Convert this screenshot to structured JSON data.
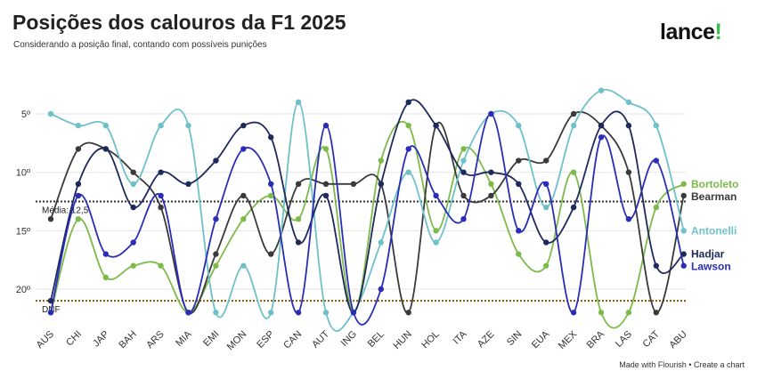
{
  "header": {
    "title": "Posições dos calouros da F1 2025",
    "subtitle": "Considerando a posição final, contando com possíveis punições",
    "logo_text": "lance",
    "logo_mark": "!"
  },
  "footer": {
    "made_with": "Made with Flourish",
    "separator": " • ",
    "create": "Create a chart"
  },
  "chart_data": {
    "type": "line",
    "categories": [
      "AUS",
      "CHI",
      "JAP",
      "BAH",
      "ARS",
      "MIA",
      "EMI",
      "MON",
      "ESP",
      "CAN",
      "AUT",
      "ING",
      "BEL",
      "HUN",
      "HOL",
      "ITA",
      "AZE",
      "SIN",
      "EUA",
      "MEX",
      "BRA",
      "LAS",
      "CAT",
      "ABU"
    ],
    "y_ticks": [
      {
        "value": 5,
        "label": "5º"
      },
      {
        "value": 10,
        "label": "10º"
      },
      {
        "value": 15,
        "label": "15º"
      },
      {
        "value": 20,
        "label": "20º"
      }
    ],
    "ylim": [
      22.5,
      2
    ],
    "y_inverted": true,
    "grid": true,
    "dnf_value": 21,
    "reference_lines": [
      {
        "label": "Média: 12,5",
        "value": 12.5
      },
      {
        "label": "DNF",
        "value": 21
      }
    ],
    "series": [
      {
        "name": "Bortoleto",
        "color": "#7dba4a",
        "values": [
          22,
          14,
          19,
          18,
          18,
          22,
          18,
          14,
          12,
          14,
          8,
          22,
          9,
          6,
          15,
          8,
          11,
          17,
          18,
          10,
          22,
          22,
          13,
          11
        ]
      },
      {
        "name": "Bearman",
        "color": "#3a3a3a",
        "values": [
          14,
          8,
          8,
          10,
          13,
          22,
          17,
          12,
          17,
          11,
          11,
          11,
          11,
          22,
          6,
          12,
          12,
          9,
          9,
          5,
          6,
          10,
          22,
          12
        ]
      },
      {
        "name": "Antonelli",
        "color": "#6ec1c9",
        "values": [
          5,
          6,
          6,
          11,
          6,
          6,
          22,
          18,
          22,
          4,
          22,
          22,
          16,
          10,
          16,
          9,
          5,
          6,
          13,
          6,
          3,
          4,
          6,
          15
        ]
      },
      {
        "name": "Hadjar",
        "color": "#1f2a5c",
        "values": [
          21,
          11,
          8,
          13,
          10,
          11,
          9,
          6,
          7,
          16,
          12,
          22,
          11,
          4,
          6,
          10,
          10,
          11,
          16,
          13,
          6,
          6,
          18,
          17
        ]
      },
      {
        "name": "Lawson",
        "color": "#2a2db8",
        "values": [
          22,
          12,
          17,
          16,
          12,
          22,
          14,
          8,
          11,
          22,
          6,
          22,
          20,
          8,
          12,
          14,
          5,
          15,
          11,
          22,
          7,
          14,
          9,
          18
        ]
      }
    ]
  }
}
